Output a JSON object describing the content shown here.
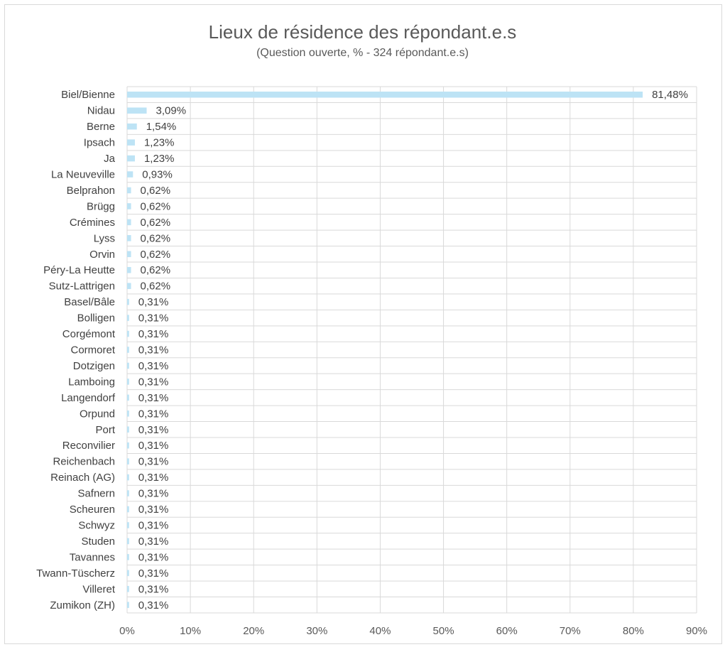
{
  "chart_data": {
    "type": "bar",
    "orientation": "horizontal",
    "title": "Lieux de résidence des répondant.e.s",
    "subtitle": "(Question ouverte, % - 324 répondant.e.s)",
    "categories": [
      "Biel/Bienne",
      "Nidau",
      "Berne",
      "Ipsach",
      "Ja",
      "La Neuveville",
      "Belprahon",
      "Brügg",
      "Crémines",
      "Lyss",
      "Orvin",
      "Péry-La Heutte",
      "Sutz-Lattrigen",
      "Basel/Bâle",
      "Bolligen",
      "Corgémont",
      "Cormoret",
      "Dotzigen",
      "Lamboing",
      "Langendorf",
      "Orpund",
      "Port",
      "Reconvilier",
      "Reichenbach",
      "Reinach (AG)",
      "Safnern",
      "Scheuren",
      "Schwyz",
      "Studen",
      "Tavannes",
      "Twann-Tüscherz",
      "Villeret",
      "Zumikon (ZH)"
    ],
    "values": [
      81.48,
      3.09,
      1.54,
      1.23,
      1.23,
      0.93,
      0.62,
      0.62,
      0.62,
      0.62,
      0.62,
      0.62,
      0.62,
      0.31,
      0.31,
      0.31,
      0.31,
      0.31,
      0.31,
      0.31,
      0.31,
      0.31,
      0.31,
      0.31,
      0.31,
      0.31,
      0.31,
      0.31,
      0.31,
      0.31,
      0.31,
      0.31,
      0.31
    ],
    "value_labels": [
      "81,48%",
      "3,09%",
      "1,54%",
      "1,23%",
      "1,23%",
      "0,93%",
      "0,62%",
      "0,62%",
      "0,62%",
      "0,62%",
      "0,62%",
      "0,62%",
      "0,62%",
      "0,31%",
      "0,31%",
      "0,31%",
      "0,31%",
      "0,31%",
      "0,31%",
      "0,31%",
      "0,31%",
      "0,31%",
      "0,31%",
      "0,31%",
      "0,31%",
      "0,31%",
      "0,31%",
      "0,31%",
      "0,31%",
      "0,31%",
      "0,31%",
      "0,31%",
      "0,31%"
    ],
    "xlim": [
      0,
      90
    ],
    "x_ticks": [
      0,
      10,
      20,
      30,
      40,
      50,
      60,
      70,
      80,
      90
    ],
    "x_tick_labels": [
      "0%",
      "10%",
      "20%",
      "30%",
      "40%",
      "50%",
      "60%",
      "70%",
      "80%",
      "90%"
    ],
    "grid": true,
    "legend": "none",
    "bar_color": "#bde3f5",
    "grid_color": "#d9d9d9",
    "text_color": "#404040"
  }
}
